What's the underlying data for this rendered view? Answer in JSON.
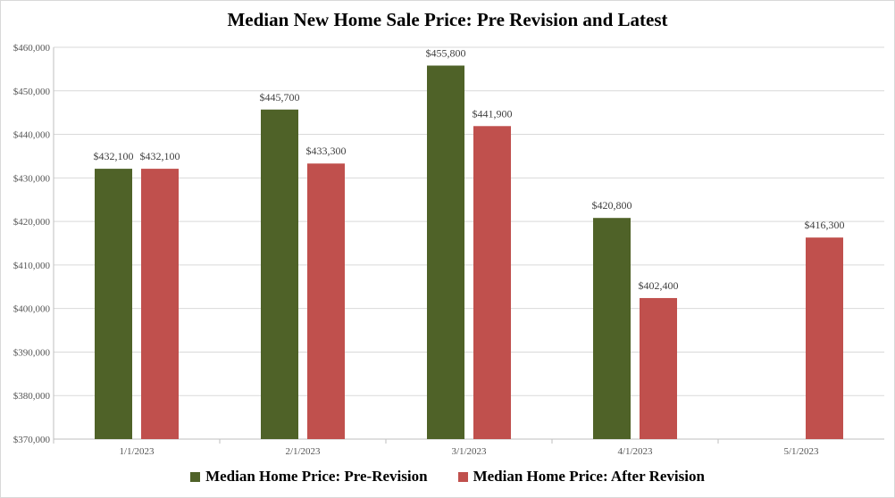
{
  "chart_data": {
    "type": "bar",
    "title": "Median New Home Sale Price: Pre Revision and Latest",
    "xlabel": "",
    "ylabel": "",
    "categories": [
      "1/1/2023",
      "2/1/2023",
      "3/1/2023",
      "4/1/2023",
      "5/1/2023"
    ],
    "series": [
      {
        "name": "Median Home Price: Pre-Revision",
        "color": "#4f6228",
        "values": [
          432100,
          445700,
          455800,
          420800,
          null
        ],
        "labels": [
          "$432,100",
          "$445,700",
          "$455,800",
          "$420,800",
          null
        ]
      },
      {
        "name": "Median Home Price: After Revision",
        "color": "#c0504d",
        "values": [
          432100,
          433300,
          441900,
          402400,
          416300
        ],
        "labels": [
          "$432,100",
          "$433,300",
          "$441,900",
          "$402,400",
          "$416,300"
        ]
      }
    ],
    "ylim": [
      370000,
      460000
    ],
    "yticks": [
      370000,
      380000,
      390000,
      400000,
      410000,
      420000,
      430000,
      440000,
      450000,
      460000
    ],
    "ytick_labels": [
      "$370,000",
      "$380,000",
      "$390,000",
      "$400,000",
      "$410,000",
      "$420,000",
      "$430,000",
      "$440,000",
      "$450,000",
      "$460,000"
    ],
    "grid": true,
    "legend_position": "bottom-center"
  }
}
